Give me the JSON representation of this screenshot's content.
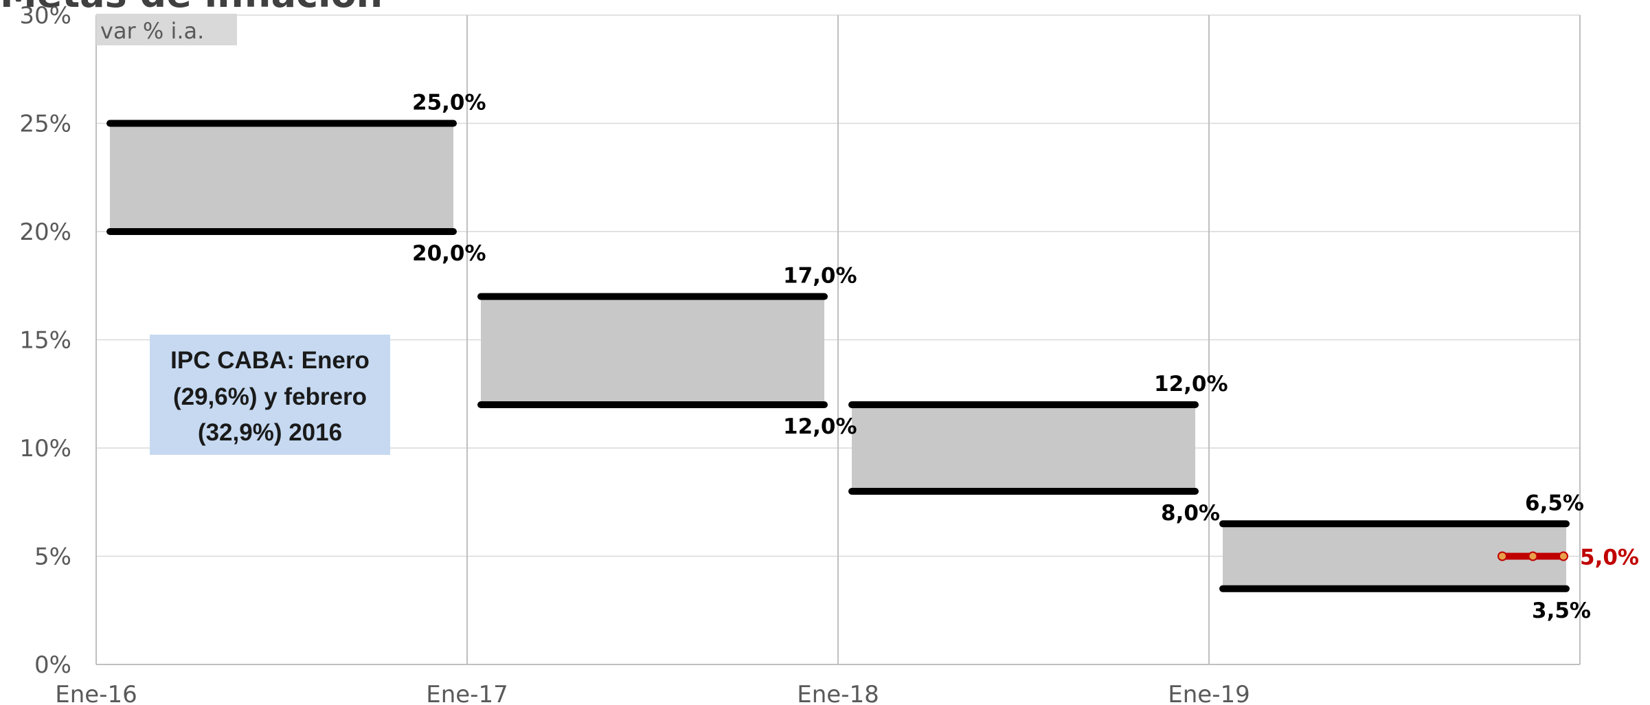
{
  "title": "Metas de inflación",
  "unit_label": "var % i.a.",
  "note": {
    "lines": [
      "IPC CABA: Enero",
      "(29,6%) y febrero",
      "(32,9%) 2016"
    ],
    "fill": "#c6d9f1"
  },
  "colors": {
    "band": "#c8c8c8",
    "line": "#000000",
    "point": "#c00000",
    "point_dot": "#e9a04a",
    "grid": "#d9d9d9",
    "axis": "#bfbfbf"
  },
  "chart_data": {
    "type": "area",
    "ylim": [
      0,
      30
    ],
    "y_ticks": [
      {
        "value": 0,
        "label": "0%"
      },
      {
        "value": 5,
        "label": "5%"
      },
      {
        "value": 10,
        "label": "10%"
      },
      {
        "value": 15,
        "label": "15%"
      },
      {
        "value": 20,
        "label": "20%"
      },
      {
        "value": 25,
        "label": "25%"
      },
      {
        "value": 30,
        "label": "30%"
      }
    ],
    "x_ticks": [
      "Ene-16",
      "Ene-17",
      "Ene-18",
      "Ene-19"
    ],
    "grid": true,
    "bands": [
      {
        "period": "2016",
        "upper": 25.0,
        "lower": 20.0,
        "upper_label": "25,0%",
        "lower_label": "20,0%"
      },
      {
        "period": "2017",
        "upper": 17.0,
        "lower": 12.0,
        "upper_label": "17,0%",
        "lower_label": "12,0%"
      },
      {
        "period": "2018",
        "upper": 12.0,
        "lower": 8.0,
        "upper_label": "12,0%",
        "lower_label": "8,0%"
      },
      {
        "period": "2019",
        "upper": 6.5,
        "lower": 3.5,
        "upper_label": "6,5%",
        "lower_label": "3,5%"
      }
    ],
    "point_target": {
      "period": "2019",
      "value": 5.0,
      "label": "5,0%"
    }
  }
}
